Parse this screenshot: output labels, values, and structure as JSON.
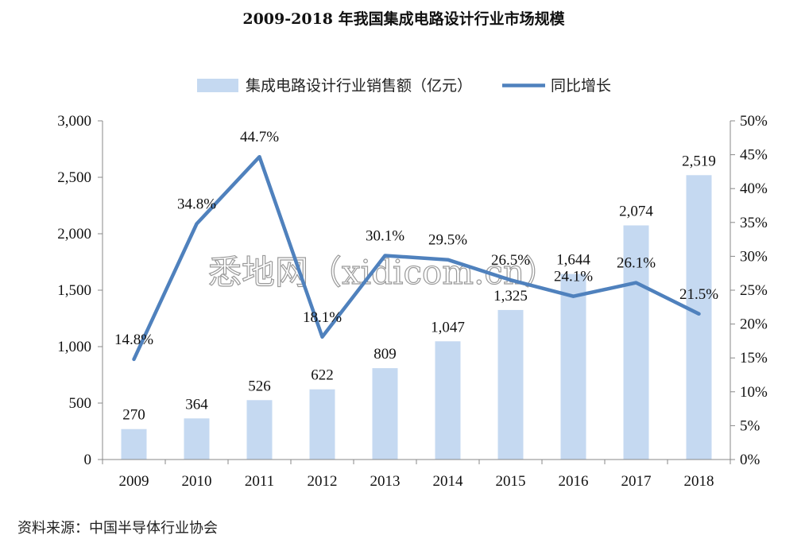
{
  "chart_data": {
    "type": "bar",
    "title": "2009-2018 年我国集成电路设计行业市场规模",
    "categories": [
      "2009",
      "2010",
      "2011",
      "2012",
      "2013",
      "2014",
      "2015",
      "2016",
      "2017",
      "2018"
    ],
    "series": [
      {
        "name": "集成电路设计行业销售额（亿元）",
        "type": "bar",
        "axis": "left",
        "color": "#c5d9f1",
        "values": [
          270,
          364,
          526,
          622,
          809,
          1047,
          1325,
          1644,
          2074,
          2519
        ],
        "labels": [
          "270",
          "364",
          "526",
          "622",
          "809",
          "1,047",
          "1,325",
          "1,644",
          "2,074",
          "2,519"
        ]
      },
      {
        "name": "同比增长",
        "type": "line",
        "axis": "right",
        "color": "#4f81bd",
        "values": [
          14.8,
          34.8,
          44.7,
          18.1,
          30.1,
          29.5,
          26.5,
          24.1,
          26.1,
          21.5
        ],
        "labels": [
          "14.8%",
          "34.8%",
          "44.7%",
          "18.1%",
          "30.1%",
          "29.5%",
          "26.5%",
          "24.1%",
          "26.1%",
          "21.5%"
        ]
      }
    ],
    "left_axis": {
      "ylim": [
        0,
        3000
      ],
      "ticks": [
        0,
        500,
        1000,
        1500,
        2000,
        2500,
        3000
      ],
      "tick_labels": [
        "0",
        "500",
        "1,000",
        "1,500",
        "2,000",
        "2,500",
        "3,000"
      ]
    },
    "right_axis": {
      "ylim": [
        0,
        50
      ],
      "ticks": [
        0,
        5,
        10,
        15,
        20,
        25,
        30,
        35,
        40,
        45,
        50
      ],
      "tick_labels": [
        "0%",
        "5%",
        "10%",
        "15%",
        "20%",
        "25%",
        "30%",
        "35%",
        "40%",
        "45%",
        "50%"
      ]
    },
    "legend_position": "top-center",
    "grid": false
  },
  "source": "资料来源：中国半导体行业协会",
  "watermark": "悉地网（xidicom.cn）"
}
